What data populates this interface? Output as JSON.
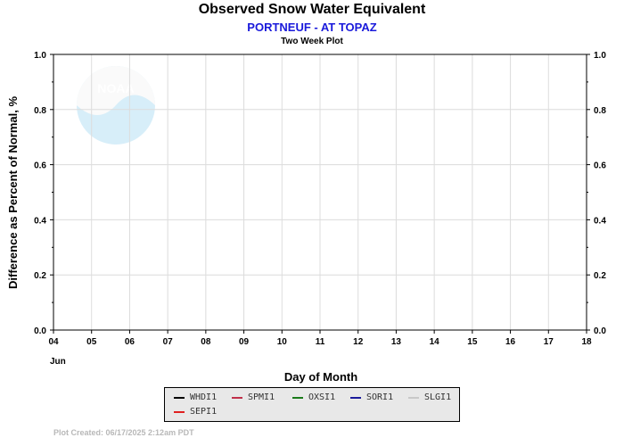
{
  "chart_data": {
    "type": "line",
    "title": "Observed Snow Water Equivalent",
    "subtitle": "PORTNEUF - AT TOPAZ",
    "subsubtitle": "Two Week Plot",
    "xlabel": "Day of Month",
    "ylabel": "Difference as Percent of Normal, %",
    "x_ticks": [
      "04",
      "05",
      "06",
      "07",
      "08",
      "09",
      "10",
      "11",
      "12",
      "13",
      "14",
      "15",
      "16",
      "17",
      "18"
    ],
    "x_month_label": "Jun",
    "y_ticks": [
      "0.0",
      "0.2",
      "0.4",
      "0.6",
      "0.8",
      "1.0"
    ],
    "ylim": [
      0,
      1
    ],
    "grid": true,
    "series": [
      {
        "name": "WHDI1",
        "color": "#000000",
        "values": []
      },
      {
        "name": "SPMI1",
        "color": "#c0304a",
        "values": []
      },
      {
        "name": "OXSI1",
        "color": "#1a7a1a",
        "values": []
      },
      {
        "name": "SORI1",
        "color": "#1a1a9a",
        "values": []
      },
      {
        "name": "SLGI1",
        "color": "#c8c8c8",
        "values": []
      },
      {
        "name": "SEPI1",
        "color": "#e02020",
        "values": []
      }
    ]
  },
  "watermark": {
    "text": "NOAA",
    "icon": "noaa-logo"
  },
  "footer": "Plot Created: 06/17/2025 2:12am PDT"
}
